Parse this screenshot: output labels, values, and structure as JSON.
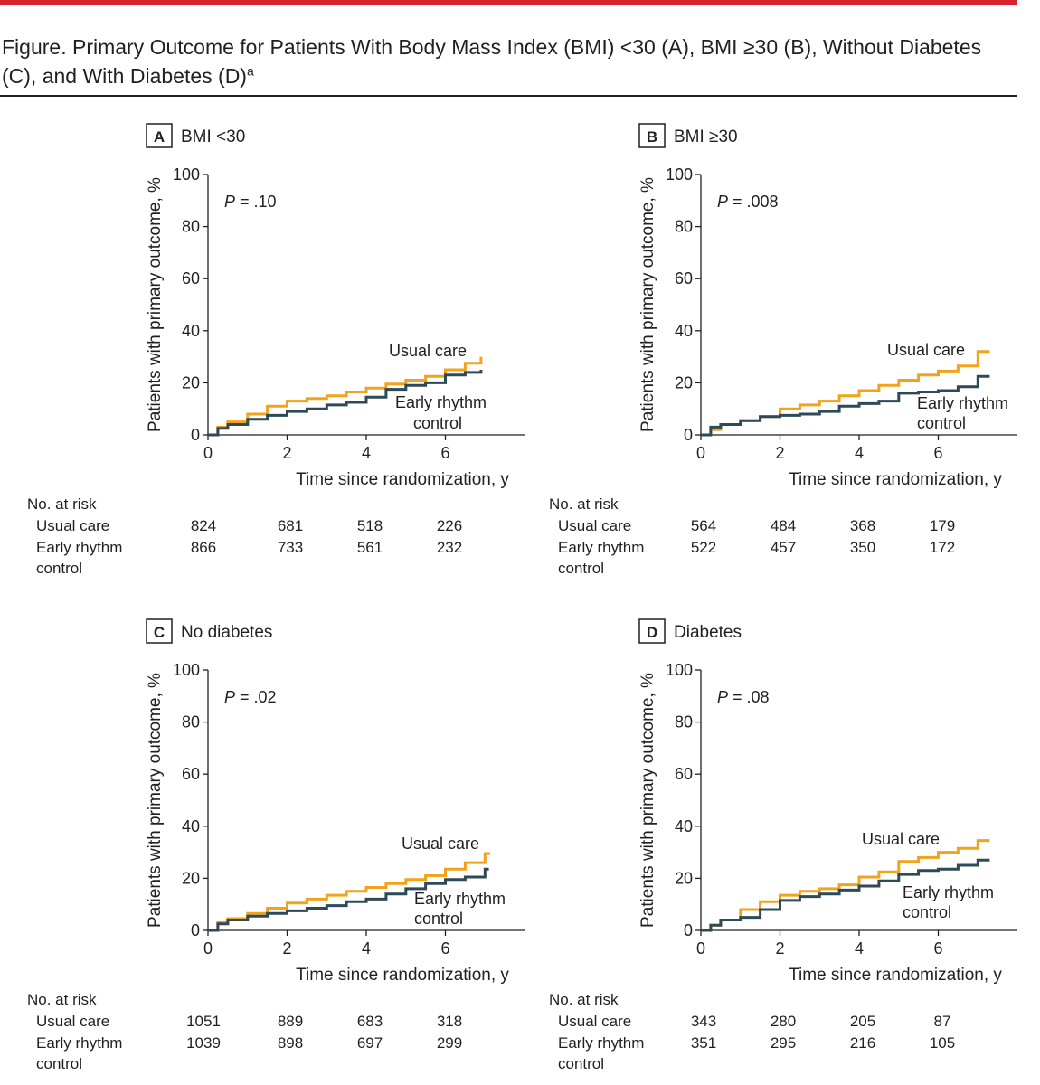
{
  "figure": {
    "title": "Figure. Primary Outcome for Patients With Body Mass Index (BMI) <30 (A), BMI ≥30 (B), Without Diabetes (C), and With Diabetes (D)",
    "title_superscript": "a"
  },
  "colors": {
    "usual_care": "#f3a21c",
    "early_rhythm": "#2e4a57",
    "accent_rule": "#d6232e",
    "ink": "#231f20"
  },
  "chart_data": [
    {
      "type": "line",
      "panel_letter": "A",
      "panel_title": "BMI <30",
      "p_prefix": "P",
      "p_value": " = .10",
      "xlabel": "Time since randomization, y",
      "ylabel": "Patients with primary outcome, %",
      "xlim": [
        0,
        8
      ],
      "ylim": [
        0,
        100
      ],
      "x_ticks": [
        0,
        2,
        4,
        6
      ],
      "y_ticks": [
        0,
        20,
        40,
        60,
        80,
        100
      ],
      "series": [
        {
          "name": "Usual care",
          "label_lines": [
            "Usual care"
          ],
          "color": "#f3a21c",
          "x": [
            0,
            0.25,
            0.5,
            1,
            1.5,
            2,
            2.5,
            3,
            3.5,
            4,
            4.5,
            5,
            5.5,
            6,
            6.5,
            6.9
          ],
          "y": [
            0,
            3,
            5,
            8,
            11,
            13,
            14,
            15,
            16.5,
            18,
            19.5,
            21,
            22.5,
            25,
            27.5,
            30
          ]
        },
        {
          "name": "Early rhythm control",
          "label_lines": [
            "Early rhythm",
            "control"
          ],
          "color": "#2e4a57",
          "x": [
            0,
            0.25,
            0.5,
            1,
            1.5,
            2,
            2.5,
            3,
            3.5,
            4,
            4.5,
            5,
            5.5,
            6,
            6.5,
            6.9
          ],
          "y": [
            0,
            2.5,
            4,
            6,
            7.5,
            9,
            10,
            11.5,
            12.5,
            14.5,
            17.5,
            19,
            20,
            23,
            24,
            25
          ]
        }
      ],
      "at_risk": {
        "header": "No. at risk",
        "rows": [
          {
            "label_lines": [
              "Usual care"
            ],
            "values": [
              "824",
              "681",
              "518",
              "226"
            ]
          },
          {
            "label_lines": [
              "Early rhythm",
              "control"
            ],
            "values": [
              "866",
              "733",
              "561",
              "232"
            ]
          }
        ]
      }
    },
    {
      "type": "line",
      "panel_letter": "B",
      "panel_title": "BMI ≥30",
      "p_prefix": "P",
      "p_value": " = .008",
      "xlabel": "Time since randomization, y",
      "ylabel": "Patients with primary outcome, %",
      "xlim": [
        0,
        8
      ],
      "ylim": [
        0,
        100
      ],
      "x_ticks": [
        0,
        2,
        4,
        6
      ],
      "y_ticks": [
        0,
        20,
        40,
        60,
        80,
        100
      ],
      "series": [
        {
          "name": "Usual care",
          "label_lines": [
            "Usual care"
          ],
          "color": "#f3a21c",
          "x": [
            0,
            0.25,
            0.5,
            1,
            1.5,
            2,
            2.5,
            3,
            3.5,
            4,
            4.5,
            5,
            5.5,
            6,
            6.5,
            7,
            7.3
          ],
          "y": [
            0,
            2,
            4,
            5.5,
            7,
            10,
            11.5,
            13,
            15,
            17,
            19,
            21,
            23,
            24.5,
            26.5,
            32,
            32
          ]
        },
        {
          "name": "Early rhythm control",
          "label_lines": [
            "Early rhythm",
            "control"
          ],
          "color": "#2e4a57",
          "x": [
            0,
            0.25,
            0.5,
            1,
            1.5,
            2,
            2.5,
            3,
            3.5,
            4,
            4.5,
            5,
            5.5,
            6,
            6.5,
            7,
            7.3
          ],
          "y": [
            0,
            3,
            4,
            5.5,
            7,
            7.5,
            8,
            9,
            11,
            12,
            13,
            16,
            16.5,
            17,
            18.5,
            22.5,
            22.5
          ]
        }
      ],
      "at_risk": {
        "header": "No. at risk",
        "rows": [
          {
            "label_lines": [
              "Usual care"
            ],
            "values": [
              "564",
              "484",
              "368",
              "179"
            ]
          },
          {
            "label_lines": [
              "Early rhythm",
              "control"
            ],
            "values": [
              "522",
              "457",
              "350",
              "172"
            ]
          }
        ]
      }
    },
    {
      "type": "line",
      "panel_letter": "C",
      "panel_title": "No diabetes",
      "p_prefix": "P",
      "p_value": " = .02",
      "xlabel": "Time since randomization, y",
      "ylabel": "Patients with primary outcome, %",
      "xlim": [
        0,
        8
      ],
      "ylim": [
        0,
        100
      ],
      "x_ticks": [
        0,
        2,
        4,
        6
      ],
      "y_ticks": [
        0,
        20,
        40,
        60,
        80,
        100
      ],
      "series": [
        {
          "name": "Usual care",
          "label_lines": [
            "Usual care"
          ],
          "color": "#f3a21c",
          "x": [
            0,
            0.25,
            0.5,
            1,
            1.5,
            2,
            2.5,
            3,
            3.5,
            4,
            4.5,
            5,
            5.5,
            6,
            6.5,
            7,
            7.1
          ],
          "y": [
            0,
            3,
            4.5,
            6.5,
            8.5,
            10.5,
            12,
            13.5,
            15,
            16.5,
            18,
            19.5,
            21,
            23.5,
            26,
            29.5,
            30
          ]
        },
        {
          "name": "Early rhythm control",
          "label_lines": [
            "Early rhythm",
            "control"
          ],
          "color": "#2e4a57",
          "x": [
            0,
            0.25,
            0.5,
            1,
            1.5,
            2,
            2.5,
            3,
            3.5,
            4,
            4.5,
            5,
            5.5,
            6,
            6.5,
            7,
            7.1
          ],
          "y": [
            0,
            2.5,
            4,
            5.5,
            6.5,
            7.5,
            8.5,
            9.5,
            11,
            12,
            14,
            16,
            18,
            19.5,
            20.5,
            23.5,
            23.5
          ]
        }
      ],
      "at_risk": {
        "header": "No. at risk",
        "rows": [
          {
            "label_lines": [
              "Usual care"
            ],
            "values": [
              "1051",
              "889",
              "683",
              "318"
            ]
          },
          {
            "label_lines": [
              "Early rhythm",
              "control"
            ],
            "values": [
              "1039",
              "898",
              "697",
              "299"
            ]
          }
        ]
      }
    },
    {
      "type": "line",
      "panel_letter": "D",
      "panel_title": "Diabetes",
      "p_prefix": "P",
      "p_value": " = .08",
      "xlabel": "Time since randomization, y",
      "ylabel": "Patients with primary outcome, %",
      "xlim": [
        0,
        8
      ],
      "ylim": [
        0,
        100
      ],
      "x_ticks": [
        0,
        2,
        4,
        6
      ],
      "y_ticks": [
        0,
        20,
        40,
        60,
        80,
        100
      ],
      "series": [
        {
          "name": "Usual care",
          "label_lines": [
            "Usual care"
          ],
          "color": "#f3a21c",
          "x": [
            0,
            0.25,
            0.5,
            1,
            1.5,
            2,
            2.5,
            3,
            3.5,
            4,
            4.5,
            5,
            5.5,
            6,
            6.5,
            7,
            7.3
          ],
          "y": [
            0,
            2,
            4,
            8,
            11,
            13.5,
            15,
            16,
            17.5,
            20.5,
            22.5,
            26.5,
            28,
            30,
            31.5,
            34.5,
            34.5
          ]
        },
        {
          "name": "Early rhythm control",
          "label_lines": [
            "Early rhythm",
            "control"
          ],
          "color": "#2e4a57",
          "x": [
            0,
            0.25,
            0.5,
            1,
            1.5,
            2,
            2.5,
            3,
            3.5,
            4,
            4.5,
            5,
            5.5,
            6,
            6.5,
            7,
            7.3
          ],
          "y": [
            0,
            2,
            4,
            5,
            8,
            11.5,
            13,
            14,
            15.5,
            17,
            19,
            21.5,
            23,
            23.5,
            25,
            27,
            27
          ]
        }
      ],
      "at_risk": {
        "header": "No. at risk",
        "rows": [
          {
            "label_lines": [
              "Usual care"
            ],
            "values": [
              "343",
              "280",
              "205",
              "87"
            ]
          },
          {
            "label_lines": [
              "Early rhythm",
              "control"
            ],
            "values": [
              "351",
              "295",
              "216",
              "105"
            ]
          }
        ]
      }
    }
  ]
}
